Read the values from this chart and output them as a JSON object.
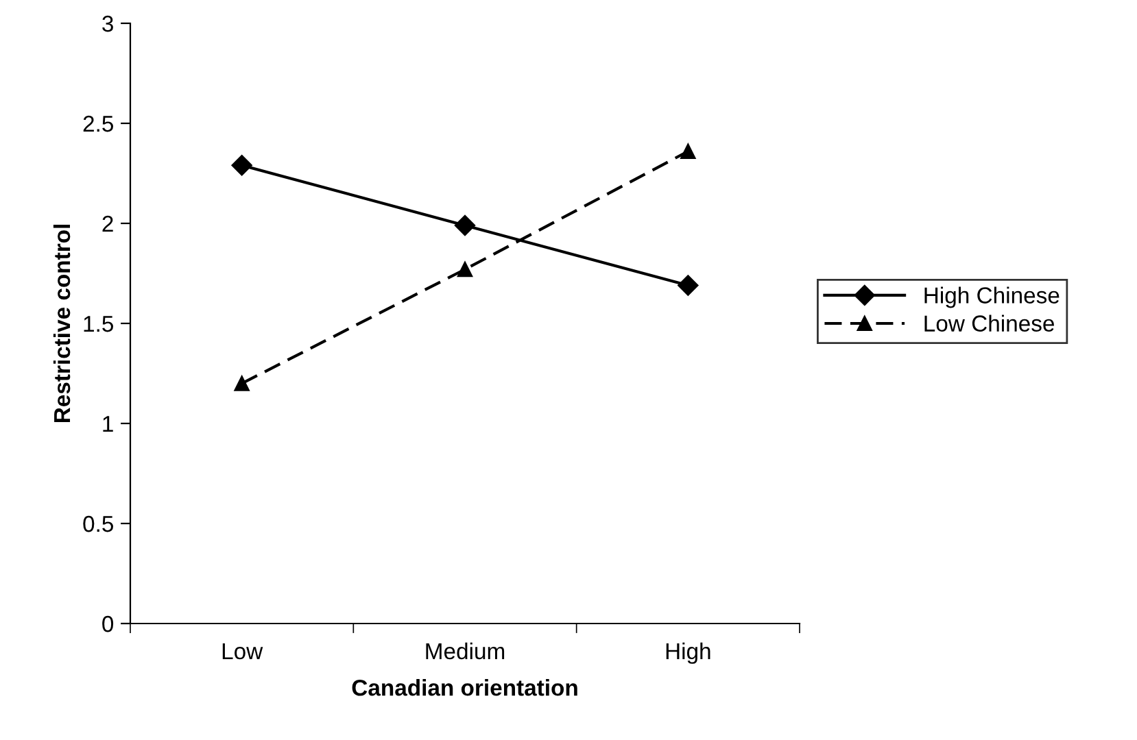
{
  "chart_data": {
    "type": "line",
    "xlabel": "Canadian orientation",
    "ylabel": "Restrictive control",
    "categories": [
      "Low",
      "Medium",
      "High"
    ],
    "series": [
      {
        "name": "High Chinese",
        "color": "#000000",
        "values": [
          2.29,
          1.99,
          1.69
        ],
        "marker": "diamond",
        "line_style": "solid"
      },
      {
        "name": "Low Chinese",
        "color": "#000000",
        "values": [
          1.2,
          1.77,
          2.36
        ],
        "marker": "triangle",
        "line_style": "dashed"
      }
    ],
    "ylim": [
      0,
      3
    ],
    "yticks": [
      0,
      0.5,
      1,
      1.5,
      2,
      2.5,
      3
    ],
    "grid": false,
    "legend": "right"
  }
}
